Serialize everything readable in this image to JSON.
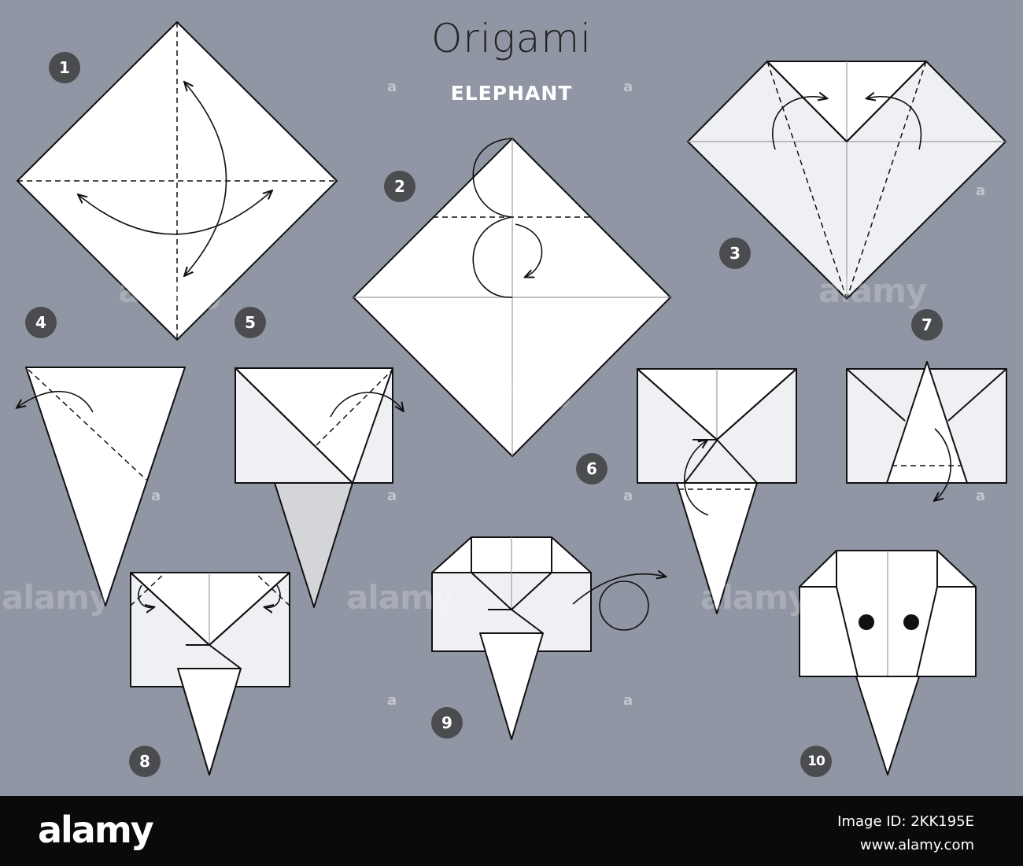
{
  "header": {
    "title": "Origami",
    "subtitle": "ELEPHANT"
  },
  "steps": [
    "1",
    "2",
    "3",
    "4",
    "5",
    "6",
    "7",
    "8",
    "9",
    "10"
  ],
  "watermark": {
    "text": "alamy",
    "mark": "a"
  },
  "footer": {
    "logo": "alamy",
    "image_id_line1": "Image ID: 2KK195E",
    "image_id_line2": "www.alamy.com"
  },
  "colors": {
    "background": "#9096a3",
    "paper": "#ffffff",
    "paper_shade": "#eff0f3",
    "paper_back": "#d4d5d8",
    "badge": "#4b4c50",
    "footer": "#0a0a0a"
  }
}
